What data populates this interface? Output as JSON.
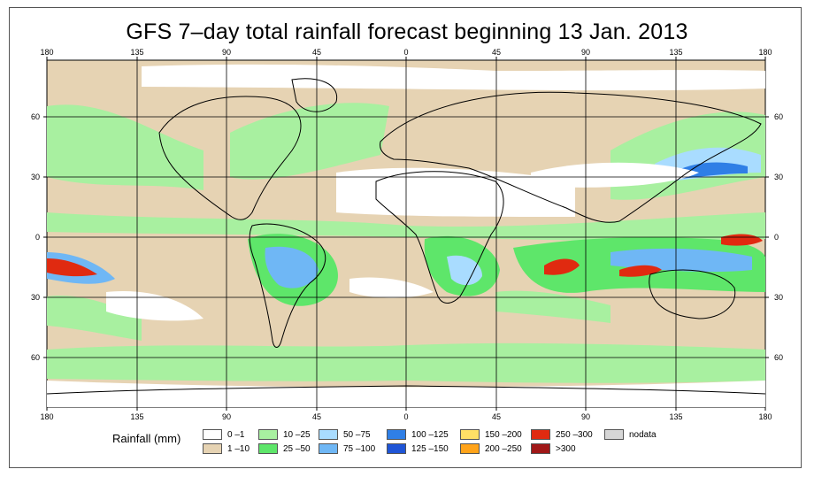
{
  "title": "GFS 7–day total rainfall forecast beginning 13 Jan. 2013",
  "lon_ticks": [
    "180",
    "135",
    "90",
    "45",
    "0",
    "45",
    "90",
    "135",
    "180"
  ],
  "lat_ticks": [
    "60",
    "30",
    "0",
    "30",
    "60"
  ],
  "legend": {
    "title": "Rainfall (mm)",
    "items": [
      {
        "label": "0 –1",
        "color": "#ffffff"
      },
      {
        "label": "1 –10",
        "color": "#e6d3b3"
      },
      {
        "label": "10 –25",
        "color": "#a8f0a0"
      },
      {
        "label": "25 –50",
        "color": "#5ee66a"
      },
      {
        "label": "50 –75",
        "color": "#a9dcff"
      },
      {
        "label": "75 –100",
        "color": "#6fb7f5"
      },
      {
        "label": "100 –125",
        "color": "#2f7fe6"
      },
      {
        "label": "125 –150",
        "color": "#1f55d6"
      },
      {
        "label": "150 –200",
        "color": "#ffe066"
      },
      {
        "label": "200 –250",
        "color": "#ffa31a"
      },
      {
        "label": "250 –300",
        "color": "#e02a10"
      },
      {
        "label": ">300",
        "color": "#a01818"
      },
      {
        "label": "nodata",
        "color": "#d6d6d6"
      }
    ]
  }
}
